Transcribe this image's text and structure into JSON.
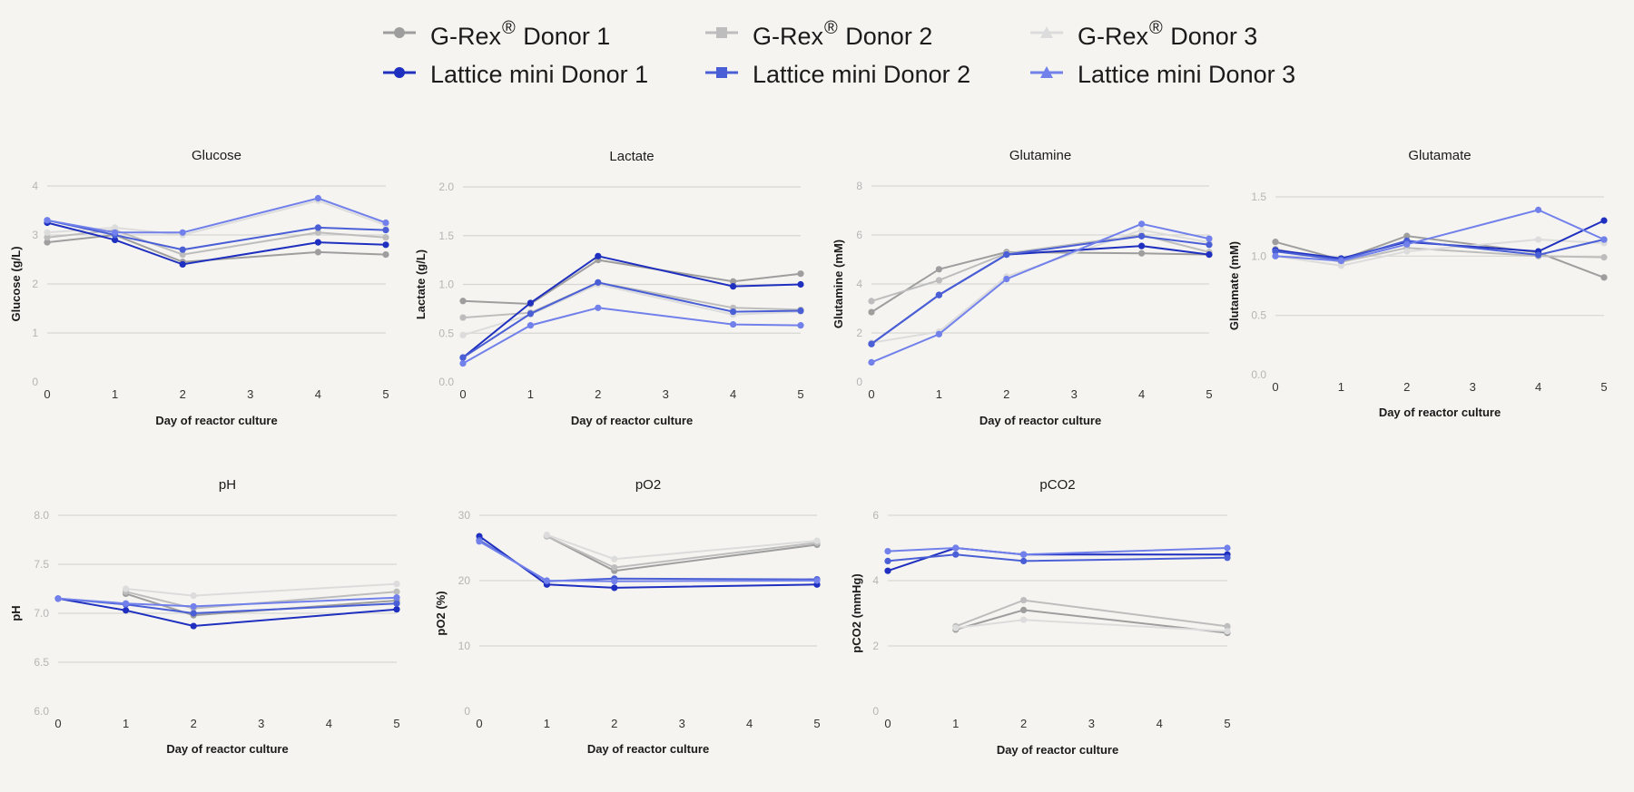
{
  "legend": [
    {
      "prefix": "G-Rex",
      "sup": "®",
      "suffix": " Donor 1",
      "color": "#9e9e9e",
      "marker": "circle"
    },
    {
      "prefix": "G-Rex",
      "sup": "®",
      "suffix": " Donor 2",
      "color": "#bdbdbd",
      "marker": "square"
    },
    {
      "prefix": "G-Rex",
      "sup": "®",
      "suffix": " Donor 3",
      "color": "#dcdcdc",
      "marker": "triangle"
    },
    {
      "prefix": "Lattice mini Donor 1",
      "sup": "",
      "suffix": "",
      "color": "#1f2fbf",
      "marker": "circle"
    },
    {
      "prefix": "Lattice mini Donor 2",
      "sup": "",
      "suffix": "",
      "color": "#4a5fd6",
      "marker": "square"
    },
    {
      "prefix": "Lattice mini Donor 3",
      "sup": "",
      "suffix": "",
      "color": "#7180ea",
      "marker": "triangle"
    }
  ],
  "chart_data": [
    {
      "type": "line",
      "title": "Glucose",
      "xlabel": "Day of reactor culture",
      "ylabel": "Glucose (g/L)",
      "xticks": [
        0,
        1,
        2,
        3,
        4,
        5
      ],
      "xlim": [
        0,
        5
      ],
      "yticks": [
        0,
        1,
        2,
        3,
        4
      ],
      "yticklabels": [
        "0",
        "1",
        "2",
        "3",
        "4"
      ],
      "ylim": [
        0,
        4
      ],
      "grid": true,
      "series": [
        {
          "name": "G-Rex® Donor 1",
          "x": [
            0,
            1,
            2,
            4,
            5
          ],
          "y": [
            2.85,
            3.0,
            2.45,
            2.65,
            2.6
          ]
        },
        {
          "name": "G-Rex® Donor 2",
          "x": [
            0,
            1,
            2,
            4,
            5
          ],
          "y": [
            2.95,
            3.1,
            2.6,
            3.05,
            2.95
          ]
        },
        {
          "name": "G-Rex® Donor 3",
          "x": [
            0,
            1,
            2,
            4,
            5
          ],
          "y": [
            3.05,
            3.15,
            3.0,
            3.7,
            3.2
          ]
        },
        {
          "name": "Lattice mini Donor 1",
          "x": [
            0,
            1,
            2,
            4,
            5
          ],
          "y": [
            3.25,
            2.9,
            2.4,
            2.85,
            2.8
          ]
        },
        {
          "name": "Lattice mini Donor 2",
          "x": [
            0,
            1,
            2,
            4,
            5
          ],
          "y": [
            3.3,
            3.0,
            2.7,
            3.15,
            3.1
          ]
        },
        {
          "name": "Lattice mini Donor 3",
          "x": [
            0,
            1,
            2,
            4,
            5
          ],
          "y": [
            3.3,
            3.05,
            3.05,
            3.75,
            3.25
          ]
        }
      ]
    },
    {
      "type": "line",
      "title": "Lactate",
      "xlabel": "Day of reactor culture",
      "ylabel": "Lactate  (g/L)",
      "xticks": [
        0,
        1,
        2,
        3,
        4,
        5
      ],
      "xlim": [
        0,
        5
      ],
      "yticks": [
        0,
        0.5,
        1,
        1.5,
        2
      ],
      "yticklabels": [
        "0.0",
        "0.5",
        "1.0",
        "1.5",
        "2.0"
      ],
      "ylim": [
        0,
        2
      ],
      "grid": true,
      "series": [
        {
          "name": "G-Rex® Donor 1",
          "x": [
            0,
            1,
            2,
            4,
            5
          ],
          "y": [
            0.83,
            0.8,
            1.25,
            1.03,
            1.11
          ]
        },
        {
          "name": "G-Rex® Donor 2",
          "x": [
            0,
            1,
            2,
            4,
            5
          ],
          "y": [
            0.66,
            0.71,
            1.02,
            0.76,
            0.74
          ]
        },
        {
          "name": "G-Rex® Donor 3",
          "x": [
            0,
            1,
            2,
            4,
            5
          ],
          "y": [
            0.48,
            0.69,
            1.0,
            0.69,
            0.72
          ]
        },
        {
          "name": "Lattice mini Donor 1",
          "x": [
            0,
            1,
            2,
            4,
            5
          ],
          "y": [
            0.25,
            0.81,
            1.29,
            0.98,
            1.0
          ]
        },
        {
          "name": "Lattice mini Donor 2",
          "x": [
            0,
            1,
            2,
            4,
            5
          ],
          "y": [
            0.25,
            0.7,
            1.02,
            0.72,
            0.73
          ]
        },
        {
          "name": "Lattice mini Donor 3",
          "x": [
            0,
            1,
            2,
            4,
            5
          ],
          "y": [
            0.19,
            0.58,
            0.76,
            0.59,
            0.58
          ]
        }
      ]
    },
    {
      "type": "line",
      "title": "Glutamine",
      "xlabel": "Day of reactor culture",
      "ylabel": "Glutamine (mM)",
      "xticks": [
        0,
        1,
        2,
        3,
        4,
        5
      ],
      "xlim": [
        0,
        5
      ],
      "yticks": [
        0,
        2,
        4,
        6,
        8
      ],
      "yticklabels": [
        "0",
        "2",
        "4",
        "6",
        "8"
      ],
      "ylim": [
        0,
        8
      ],
      "grid": true,
      "series": [
        {
          "name": "G-Rex® Donor 1",
          "x": [
            0,
            1,
            2,
            4,
            5
          ],
          "y": [
            2.85,
            4.6,
            5.3,
            5.25,
            5.2
          ]
        },
        {
          "name": "G-Rex® Donor 2",
          "x": [
            0,
            1,
            2,
            4,
            5
          ],
          "y": [
            3.3,
            4.15,
            5.25,
            6.0,
            5.3
          ]
        },
        {
          "name": "G-Rex® Donor 3",
          "x": [
            0,
            1,
            2,
            4,
            5
          ],
          "y": [
            1.6,
            2.05,
            4.3,
            6.2,
            5.7
          ]
        },
        {
          "name": "Lattice mini Donor 1",
          "x": [
            0,
            1,
            2,
            4,
            5
          ],
          "y": [
            1.55,
            3.55,
            5.2,
            5.55,
            5.2
          ]
        },
        {
          "name": "Lattice mini Donor 2",
          "x": [
            0,
            1,
            2,
            4,
            5
          ],
          "y": [
            1.55,
            3.55,
            5.2,
            5.95,
            5.6
          ]
        },
        {
          "name": "Lattice mini Donor 3",
          "x": [
            0,
            1,
            2,
            4,
            5
          ],
          "y": [
            0.8,
            1.95,
            4.2,
            6.45,
            5.85
          ]
        }
      ]
    },
    {
      "type": "line",
      "title": "Glutamate",
      "xlabel": "Day of reactor culture",
      "ylabel": "Glutamate (mM)",
      "xticks": [
        0,
        1,
        2,
        3,
        4,
        5
      ],
      "xlim": [
        0,
        5
      ],
      "yticks": [
        0,
        0.5,
        1,
        1.5
      ],
      "yticklabels": [
        "0.0",
        "0.5",
        "1.0",
        "1.5"
      ],
      "ylim": [
        0,
        1.5
      ],
      "grid": true,
      "series": [
        {
          "name": "G-Rex® Donor 1",
          "x": [
            0,
            1,
            2,
            4,
            5
          ],
          "y": [
            1.12,
            0.97,
            1.17,
            1.03,
            0.82
          ]
        },
        {
          "name": "G-Rex® Donor 2",
          "x": [
            0,
            1,
            2,
            4,
            5
          ],
          "y": [
            1.06,
            0.95,
            1.07,
            1.0,
            0.99
          ]
        },
        {
          "name": "G-Rex® Donor 3",
          "x": [
            0,
            1,
            2,
            4,
            5
          ],
          "y": [
            1.0,
            0.92,
            1.04,
            1.14,
            1.11
          ]
        },
        {
          "name": "Lattice mini Donor 1",
          "x": [
            0,
            1,
            2,
            4,
            5
          ],
          "y": [
            1.05,
            0.98,
            1.12,
            1.04,
            1.3
          ]
        },
        {
          "name": "Lattice mini Donor 2",
          "x": [
            0,
            1,
            2,
            4,
            5
          ],
          "y": [
            1.04,
            0.97,
            1.13,
            1.01,
            1.14
          ]
        },
        {
          "name": "Lattice mini Donor 3",
          "x": [
            0,
            1,
            2,
            4,
            5
          ],
          "y": [
            1.0,
            0.96,
            1.1,
            1.39,
            1.14
          ]
        }
      ]
    },
    {
      "type": "line",
      "title": "pH",
      "xlabel": "Day of reactor culture",
      "ylabel": "pH",
      "xticks": [
        0,
        1,
        2,
        3,
        4,
        5
      ],
      "xlim": [
        0,
        5
      ],
      "yticks": [
        6.0,
        6.5,
        7.0,
        7.5,
        8.0
      ],
      "yticklabels": [
        "6.0",
        "6.5",
        "7.0",
        "7.5",
        "8.0"
      ],
      "ylim": [
        6,
        8
      ],
      "grid": true,
      "series": [
        {
          "name": "G-Rex® Donor 1",
          "x": [
            1,
            2,
            5
          ],
          "y": [
            7.2,
            6.98,
            7.13
          ]
        },
        {
          "name": "G-Rex® Donor 2",
          "x": [
            1,
            2,
            5
          ],
          "y": [
            7.22,
            7.05,
            7.22
          ]
        },
        {
          "name": "G-Rex® Donor 3",
          "x": [
            1,
            2,
            5
          ],
          "y": [
            7.25,
            7.18,
            7.3
          ]
        },
        {
          "name": "Lattice mini Donor 1",
          "x": [
            0,
            1,
            2,
            5
          ],
          "y": [
            7.15,
            7.03,
            6.87,
            7.04
          ]
        },
        {
          "name": "Lattice mini Donor 2",
          "x": [
            0,
            1,
            2,
            5
          ],
          "y": [
            7.15,
            7.09,
            7.0,
            7.1
          ]
        },
        {
          "name": "Lattice mini Donor 3",
          "x": [
            0,
            1,
            2,
            5
          ],
          "y": [
            7.15,
            7.1,
            7.07,
            7.16
          ]
        }
      ]
    },
    {
      "type": "line",
      "title": "pO2",
      "xlabel": "Day of reactor culture",
      "ylabel": "pO2 (%)",
      "xticks": [
        0,
        1,
        2,
        3,
        4,
        5
      ],
      "xlim": [
        0,
        5
      ],
      "yticks": [
        0,
        10,
        20,
        30
      ],
      "yticklabels": [
        "0",
        "10",
        "20",
        "30"
      ],
      "ylim": [
        0,
        30
      ],
      "grid": true,
      "series": [
        {
          "name": "G-Rex® Donor 1",
          "x": [
            1,
            2,
            5
          ],
          "y": [
            26.8,
            21.5,
            25.5
          ]
        },
        {
          "name": "G-Rex® Donor 2",
          "x": [
            1,
            2,
            5
          ],
          "y": [
            26.8,
            22.0,
            25.8
          ]
        },
        {
          "name": "G-Rex® Donor 3",
          "x": [
            1,
            2,
            5
          ],
          "y": [
            27.0,
            23.3,
            26.1
          ]
        },
        {
          "name": "Lattice mini Donor 1",
          "x": [
            0,
            1,
            2,
            5
          ],
          "y": [
            26.8,
            19.4,
            18.9,
            19.4
          ]
        },
        {
          "name": "Lattice mini Donor 2",
          "x": [
            0,
            1,
            2,
            5
          ],
          "y": [
            26.2,
            19.9,
            20.3,
            20.2
          ]
        },
        {
          "name": "Lattice mini Donor 3",
          "x": [
            0,
            1,
            2,
            5
          ],
          "y": [
            26.0,
            20.0,
            19.9,
            20.0
          ]
        }
      ]
    },
    {
      "type": "line",
      "title": "pCO2",
      "xlabel": "Day of reactor culture",
      "ylabel": "pCO2 (mmHg)",
      "xticks": [
        0,
        1,
        2,
        3,
        4,
        5
      ],
      "xlim": [
        0,
        5
      ],
      "yticks": [
        0,
        2,
        4,
        6
      ],
      "yticklabels": [
        "0",
        "2",
        "4",
        "6"
      ],
      "ylim": [
        0,
        6
      ],
      "grid": true,
      "series": [
        {
          "name": "G-Rex® Donor 1",
          "x": [
            1,
            2,
            5
          ],
          "y": [
            2.5,
            3.1,
            2.4
          ]
        },
        {
          "name": "G-Rex® Donor 2",
          "x": [
            1,
            2,
            5
          ],
          "y": [
            2.6,
            3.4,
            2.6
          ]
        },
        {
          "name": "G-Rex® Donor 3",
          "x": [
            1,
            2,
            5
          ],
          "y": [
            2.55,
            2.8,
            2.45
          ]
        },
        {
          "name": "Lattice mini Donor 1",
          "x": [
            0,
            1,
            2,
            5
          ],
          "y": [
            4.3,
            5.0,
            4.8,
            4.8
          ]
        },
        {
          "name": "Lattice mini Donor 2",
          "x": [
            0,
            1,
            2,
            5
          ],
          "y": [
            4.6,
            4.8,
            4.6,
            4.7
          ]
        },
        {
          "name": "Lattice mini Donor 3",
          "x": [
            0,
            1,
            2,
            5
          ],
          "y": [
            4.9,
            5.0,
            4.8,
            5.0
          ]
        }
      ]
    }
  ]
}
